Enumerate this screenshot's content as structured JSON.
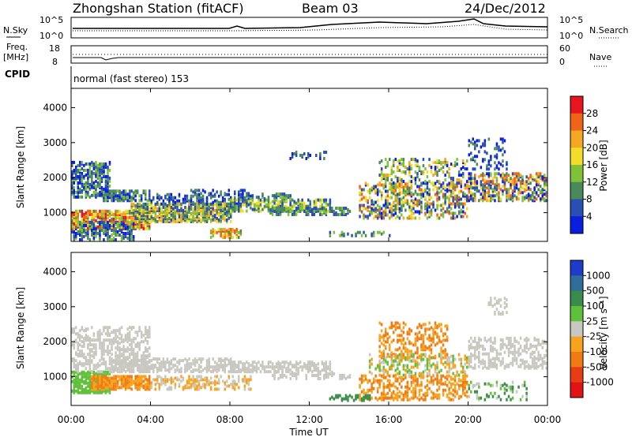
{
  "header": {
    "station": "Zhongshan Station (fitACF)",
    "beam": "Beam 03",
    "date": "24/Dec/2012"
  },
  "panels": {
    "nsky": {
      "left_label": "N.Sky",
      "left_ticks": [
        "10^5",
        "10^0"
      ],
      "right_label": "N.Search",
      "right_ticks": [
        "10^5",
        "10^0"
      ]
    },
    "freq": {
      "left_label_1": "Freq.",
      "left_label_2": "[MHz]",
      "left_ticks": [
        "18",
        "8"
      ],
      "right_label": "Nave",
      "right_ticks": [
        "60",
        "0"
      ]
    },
    "cpid": {
      "label": "CPID",
      "text": "normal (fast stereo) 153"
    }
  },
  "chart_data": [
    {
      "type": "heatmap",
      "name": "power",
      "xlabel": "Time UT",
      "ylabel": "Slant Range [km]",
      "x_ticks": [
        "00:00",
        "04:00",
        "08:00",
        "12:00",
        "16:00",
        "20:00",
        "00:00"
      ],
      "xlim_hours": [
        0,
        24
      ],
      "ylim_km": [
        180,
        4550
      ],
      "y_ticks": [
        1000,
        2000,
        3000,
        4000
      ],
      "colorbar": {
        "label": "Power [dB]",
        "ticks": [
          "4",
          "8",
          "12",
          "16",
          "20",
          "24",
          "28"
        ],
        "colors": [
          "#0a1ee0",
          "#2a4fb4",
          "#4a8a5a",
          "#7fc23a",
          "#f2de2a",
          "#f5a623",
          "#f06418",
          "#e8141e"
        ]
      }
    },
    {
      "type": "heatmap",
      "name": "velocity",
      "xlabel": "Time UT",
      "ylabel": "Slant Range [km]",
      "x_ticks": [
        "00:00",
        "04:00",
        "08:00",
        "12:00",
        "16:00",
        "20:00",
        "00:00"
      ],
      "xlim_hours": [
        0,
        24
      ],
      "ylim_km": [
        180,
        4550
      ],
      "y_ticks": [
        1000,
        2000,
        3000,
        4000
      ],
      "colorbar": {
        "label": "Velocity [m s⁻¹]",
        "ticks": [
          "1000",
          "500",
          "100",
          "25",
          "-25",
          "-100",
          "-500",
          "-1000"
        ],
        "colors": [
          "#1e3cc8",
          "#2f6e9a",
          "#3a8c4a",
          "#5fc03a",
          "#c8c8c0",
          "#f7a31e",
          "#f07a14",
          "#e83c14",
          "#e01414"
        ]
      }
    }
  ]
}
